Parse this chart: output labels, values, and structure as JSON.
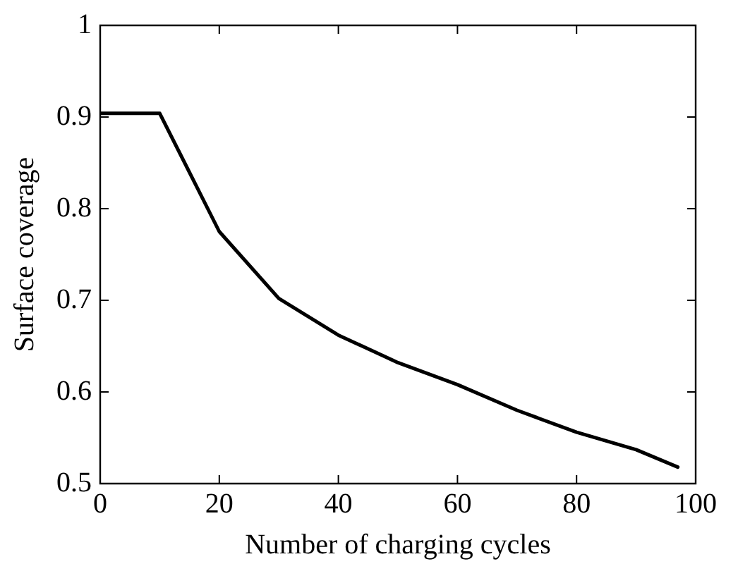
{
  "chart_data": {
    "type": "line",
    "xlabel": "Number of charging cycles",
    "ylabel": "Surface coverage",
    "x": [
      0,
      10,
      20,
      30,
      40,
      50,
      60,
      70,
      80,
      90,
      97
    ],
    "series": [
      {
        "color": "#000000",
        "values": [
          0.904,
          0.904,
          0.775,
          0.702,
          0.662,
          0.632,
          0.608,
          0.58,
          0.556,
          0.537,
          0.518
        ]
      }
    ],
    "xlim": [
      0,
      100
    ],
    "xticks": [
      0,
      20,
      40,
      60,
      80,
      100
    ],
    "ylim": [
      0.5,
      1
    ],
    "yticks": [
      0.5,
      0.6,
      0.7,
      0.8,
      0.9,
      1
    ],
    "grid": false,
    "legend": false,
    "marker": "none",
    "line_style": "solid"
  }
}
